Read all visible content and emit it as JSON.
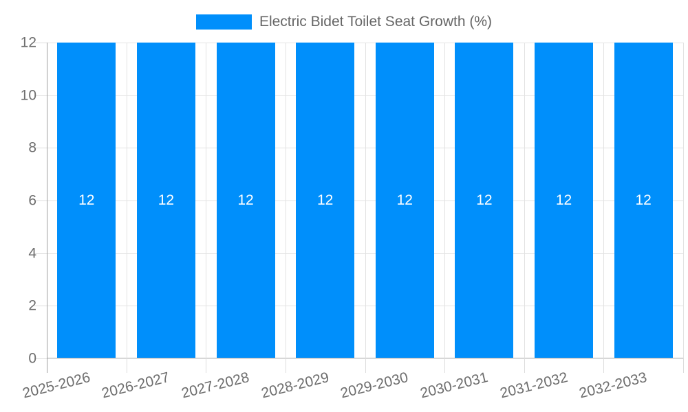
{
  "legend": {
    "label": "Electric Bidet Toilet Seat Growth (%)",
    "swatch_color": "#008FFB"
  },
  "chart_data": {
    "type": "bar",
    "title": "Electric Bidet Toilet Seat Growth (%)",
    "categories": [
      "2025-2026",
      "2026-2027",
      "2027-2028",
      "2028-2029",
      "2029-2030",
      "2030-2031",
      "2031-2032",
      "2032-2033"
    ],
    "values": [
      12,
      12,
      12,
      12,
      12,
      12,
      12,
      12
    ],
    "data_labels": [
      "12",
      "12",
      "12",
      "12",
      "12",
      "12",
      "12",
      "12"
    ],
    "xlabel": "",
    "ylabel": "",
    "ylim": [
      0,
      12
    ],
    "yticks": [
      0,
      2,
      4,
      6,
      8,
      10,
      12
    ],
    "grid": true,
    "legend_position": "top",
    "x_label_rotation_deg": -14,
    "colors": {
      "bar": "#008FFB",
      "grid": "#e2e2e2",
      "axis": "#9e9e9e",
      "tick_label": "#6e6e6e",
      "legend_text": "#666666",
      "value_label": "#ffffff"
    }
  }
}
